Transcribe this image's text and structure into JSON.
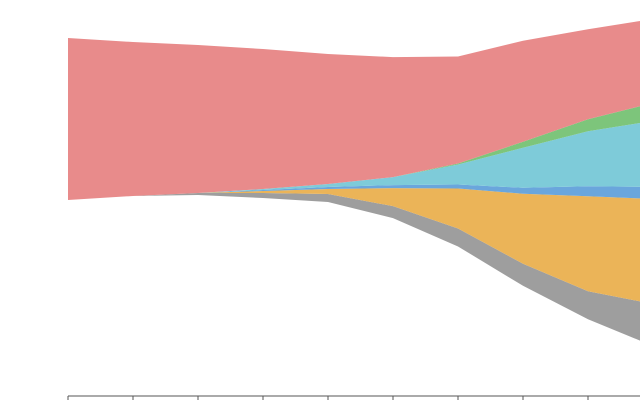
{
  "chart_data": {
    "type": "streamgraph",
    "categories": [
      null,
      null,
      null,
      null,
      null,
      null,
      null,
      null,
      null,
      null
    ],
    "series": [
      {
        "color": "#9e9e9e",
        "values": [
          0,
          0,
          2,
          5,
          8,
          12,
          18,
          22,
          28,
          42
        ]
      },
      {
        "color": "#ebb458",
        "values": [
          0,
          0,
          0,
          2,
          5,
          18,
          40,
          70,
          95,
          105
        ]
      },
      {
        "color": "#6aa6dc",
        "values": [
          0,
          0,
          0,
          1,
          2,
          3,
          4,
          6,
          10,
          12
        ]
      },
      {
        "color": "#7ecbd9",
        "values": [
          0,
          0,
          0,
          1,
          3,
          8,
          20,
          40,
          55,
          66
        ]
      },
      {
        "color": "#7dc57b",
        "values": [
          0,
          0,
          0,
          0,
          0,
          0,
          1,
          6,
          12,
          18
        ]
      },
      {
        "color": "#e88b8b",
        "values": [
          162,
          154,
          148,
          140,
          130,
          120,
          107,
          101,
          90,
          84
        ]
      }
    ]
  }
}
